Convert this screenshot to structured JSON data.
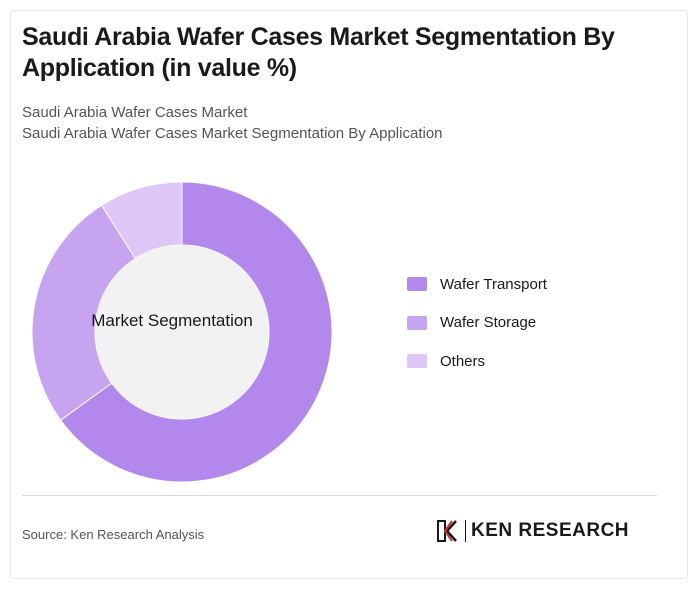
{
  "header": {
    "title": "Saudi Arabia Wafer Cases Market Segmentation By Application (in value %)",
    "subtitle_line1": "Saudi Arabia Wafer Cases Market",
    "subtitle_line2": "Saudi Arabia Wafer Cases Market Segmentation By Application"
  },
  "chart_data": {
    "type": "pie",
    "variant": "donut",
    "center_label": "Market Segmentation",
    "categories": [
      "Wafer Transport",
      "Wafer Storage",
      "Others"
    ],
    "values": [
      65,
      26,
      9
    ],
    "colors": [
      "#b388ec",
      "#c6a4f0",
      "#dec7f7"
    ],
    "legend_position": "right"
  },
  "footer": {
    "source": "Source: Ken Research Analysis",
    "logo_text": "KEN RESEARCH"
  }
}
